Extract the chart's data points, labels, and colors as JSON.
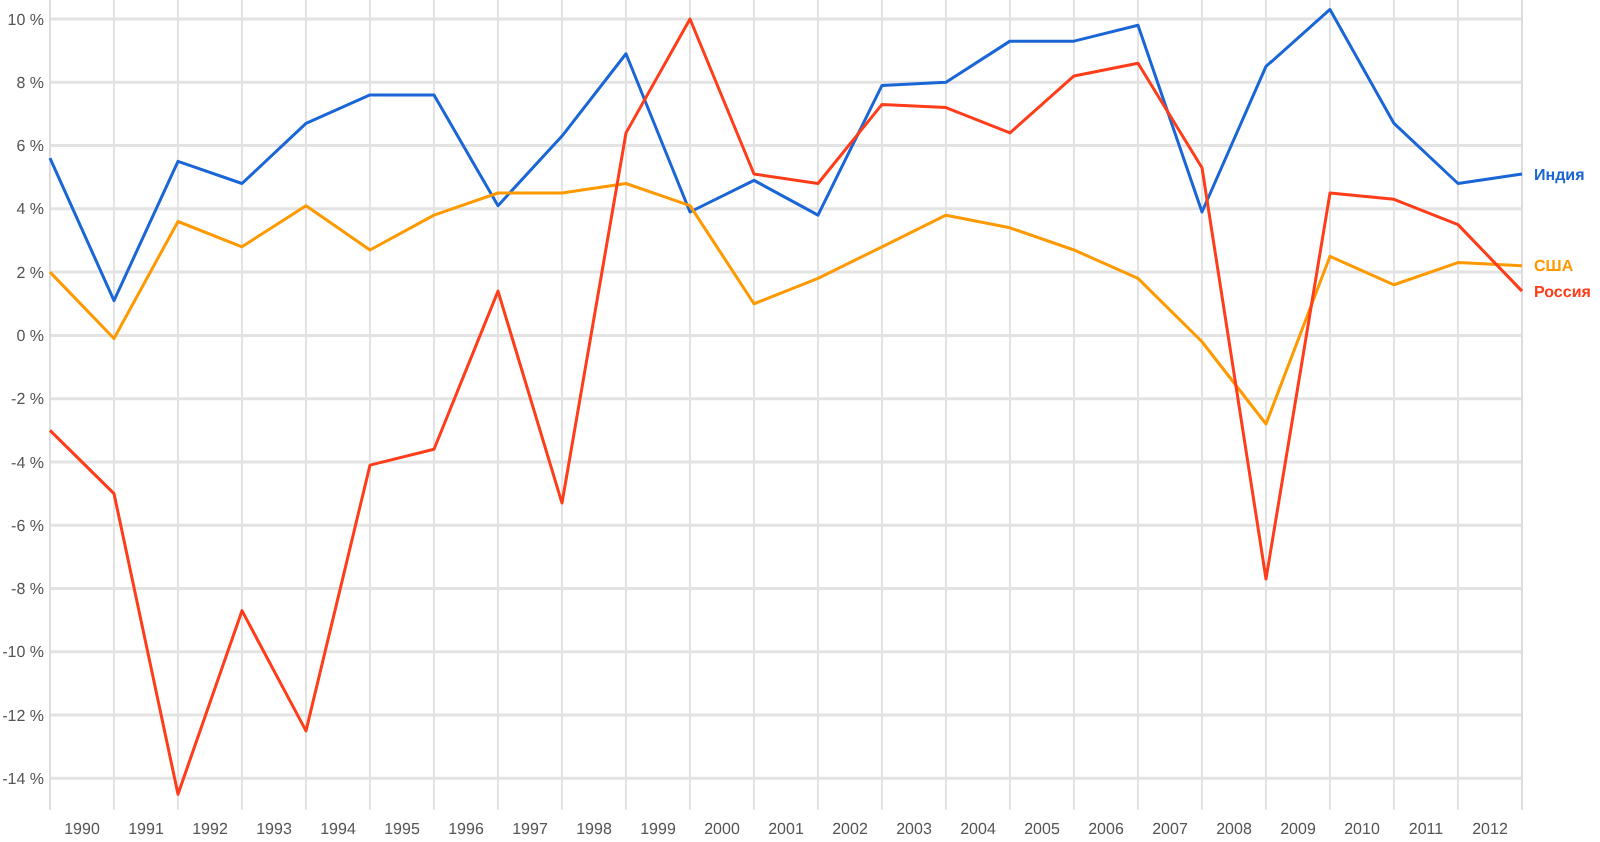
{
  "chart_data": {
    "type": "line",
    "x": [
      1990,
      1991,
      1992,
      1993,
      1994,
      1995,
      1996,
      1997,
      1998,
      1999,
      2000,
      2001,
      2002,
      2003,
      2004,
      2005,
      2006,
      2007,
      2008,
      2009,
      2010,
      2011,
      2012,
      2013
    ],
    "xlim": [
      1990,
      2013
    ],
    "xticks": [
      {
        "value": 1990,
        "label": null
      },
      {
        "value": 1990.5,
        "label": "1990"
      },
      {
        "value": 1991,
        "label": null
      },
      {
        "value": 1991.5,
        "label": "1991"
      },
      {
        "value": 1992,
        "label": null
      },
      {
        "value": 1992.5,
        "label": "1992"
      },
      {
        "value": 1993,
        "label": null
      },
      {
        "value": 1993.5,
        "label": "1993"
      },
      {
        "value": 1994,
        "label": null
      },
      {
        "value": 1994.5,
        "label": "1994"
      },
      {
        "value": 1995,
        "label": null
      },
      {
        "value": 1995.5,
        "label": "1995"
      },
      {
        "value": 1996,
        "label": null
      },
      {
        "value": 1996.5,
        "label": "1996"
      },
      {
        "value": 1997,
        "label": null
      },
      {
        "value": 1997.5,
        "label": "1997"
      },
      {
        "value": 1998,
        "label": null
      },
      {
        "value": 1998.5,
        "label": "1998"
      },
      {
        "value": 1999,
        "label": null
      },
      {
        "value": 1999.5,
        "label": "1999"
      },
      {
        "value": 2000,
        "label": null
      },
      {
        "value": 2000.5,
        "label": "2000"
      },
      {
        "value": 2001,
        "label": null
      },
      {
        "value": 2001.5,
        "label": "2001"
      },
      {
        "value": 2002,
        "label": null
      },
      {
        "value": 2002.5,
        "label": "2002"
      },
      {
        "value": 2003,
        "label": null
      },
      {
        "value": 2003.5,
        "label": "2003"
      },
      {
        "value": 2004,
        "label": null
      },
      {
        "value": 2004.5,
        "label": "2004"
      },
      {
        "value": 2005,
        "label": null
      },
      {
        "value": 2005.5,
        "label": "2005"
      },
      {
        "value": 2006,
        "label": null
      },
      {
        "value": 2006.5,
        "label": "2006"
      },
      {
        "value": 2007,
        "label": null
      },
      {
        "value": 2007.5,
        "label": "2007"
      },
      {
        "value": 2008,
        "label": null
      },
      {
        "value": 2008.5,
        "label": "2008"
      },
      {
        "value": 2009,
        "label": null
      },
      {
        "value": 2009.5,
        "label": "2009"
      },
      {
        "value": 2010,
        "label": null
      },
      {
        "value": 2010.5,
        "label": "2010"
      },
      {
        "value": 2011,
        "label": null
      },
      {
        "value": 2011.5,
        "label": "2011"
      },
      {
        "value": 2012,
        "label": null
      },
      {
        "value": 2012.5,
        "label": "2012"
      },
      {
        "value": 2013,
        "label": null
      }
    ],
    "ylim": [
      -15,
      10.6
    ],
    "yticks": [
      {
        "value": -14,
        "label": "-14 %"
      },
      {
        "value": -12,
        "label": "-12 %"
      },
      {
        "value": -10,
        "label": "-10 %"
      },
      {
        "value": -8,
        "label": "-8 %"
      },
      {
        "value": -6,
        "label": "-6 %"
      },
      {
        "value": -4,
        "label": "-4 %"
      },
      {
        "value": -2,
        "label": "-2 %"
      },
      {
        "value": 0,
        "label": "0 %"
      },
      {
        "value": 2,
        "label": "2 %"
      },
      {
        "value": 4,
        "label": "4 %"
      },
      {
        "value": 6,
        "label": "6 %"
      },
      {
        "value": 8,
        "label": "8 %"
      },
      {
        "value": 10,
        "label": "10 %"
      }
    ],
    "grid": true,
    "legend": false,
    "marker": "none",
    "line_style": "solid",
    "series": [
      {
        "name": "Индия",
        "color": "#1a66d6",
        "values": [
          5.6,
          1.1,
          5.5,
          4.8,
          6.7,
          7.6,
          7.6,
          4.1,
          6.3,
          8.9,
          3.9,
          4.9,
          3.8,
          7.9,
          8.0,
          9.3,
          9.3,
          9.8,
          3.9,
          8.5,
          10.3,
          6.7,
          4.8,
          5.1
        ]
      },
      {
        "name": "США",
        "color": "#ff9900",
        "values": [
          2.0,
          -0.1,
          3.6,
          2.8,
          4.1,
          2.7,
          3.8,
          4.5,
          4.5,
          4.8,
          4.1,
          1.0,
          1.8,
          2.8,
          3.8,
          3.4,
          2.7,
          1.8,
          -0.2,
          -2.8,
          2.5,
          1.6,
          2.3,
          2.2
        ]
      },
      {
        "name": "Россия",
        "color": "#ff3d1a",
        "values": [
          -3.0,
          -5.0,
          -14.5,
          -8.7,
          -12.5,
          -4.1,
          -3.6,
          1.4,
          -5.3,
          6.4,
          10.0,
          5.1,
          4.8,
          7.3,
          7.2,
          6.4,
          8.2,
          8.6,
          5.3,
          -7.7,
          4.5,
          4.3,
          3.5,
          1.4
        ]
      }
    ]
  }
}
